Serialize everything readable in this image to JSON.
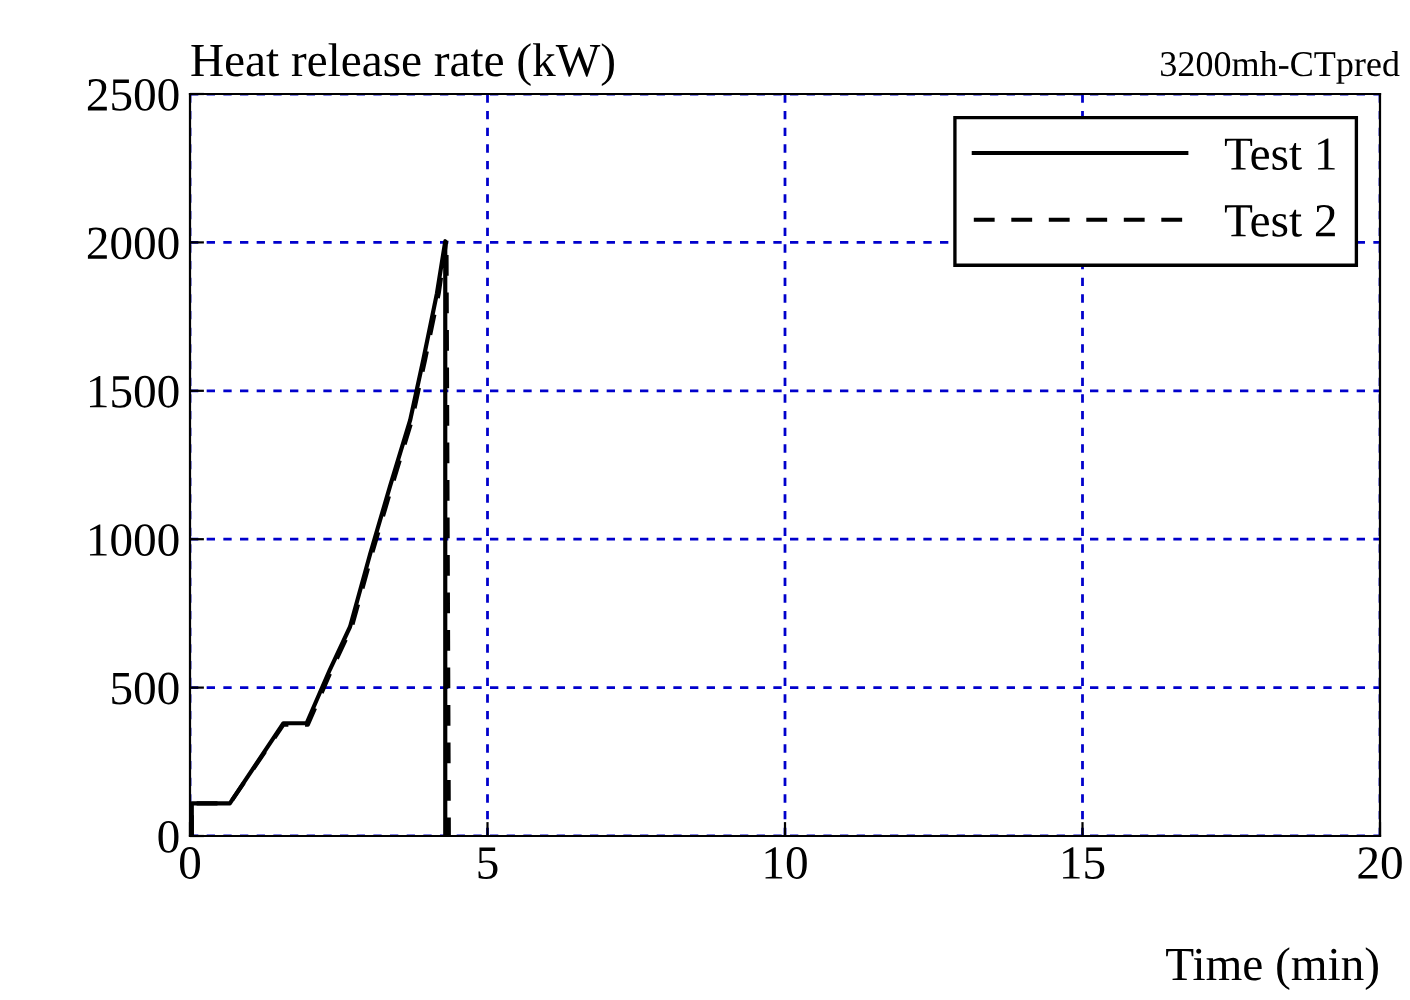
{
  "chart_data": {
    "type": "line",
    "ylabel": "Heat release rate (kW)",
    "xlabel": "Time (min)",
    "annotations": [
      "3200mh-CTpred"
    ],
    "series": [
      {
        "name": "Test 1",
        "color": "#000000",
        "line_style": "solid",
        "x": [
          0.03,
          0.03,
          0.67,
          1.57,
          1.96,
          2.35,
          2.69,
          3.03,
          3.36,
          3.7,
          3.92,
          4.15,
          4.29,
          4.29
        ],
        "values": [
          0,
          110,
          110,
          380,
          380,
          560,
          705,
          952,
          1177,
          1401,
          1604,
          1828,
          2004,
          0
        ]
      },
      {
        "name": "Test 2",
        "color": "#000000",
        "line_style": "dashed",
        "x": [
          0.03,
          0.03,
          0.67,
          1.57,
          1.98,
          2.38,
          2.72,
          3.06,
          3.39,
          3.73,
          3.95,
          4.18,
          4.31,
          4.35
        ],
        "values": [
          0,
          110,
          110,
          375,
          375,
          560,
          705,
          952,
          1177,
          1401,
          1604,
          1828,
          2010,
          0
        ]
      }
    ],
    "xlim": [
      0,
      20
    ],
    "ylim": [
      0,
      2500
    ],
    "xticks": [
      0,
      5,
      10,
      15,
      20
    ],
    "yticks": [
      0,
      500,
      1000,
      1500,
      2000,
      2500
    ],
    "grid": true,
    "legend": "top right"
  }
}
